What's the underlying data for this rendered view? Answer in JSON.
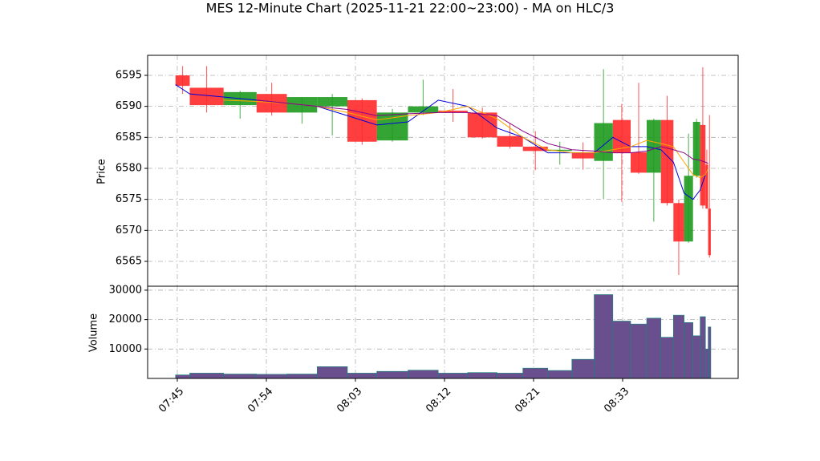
{
  "chart_data": [
    {
      "type": "candlestick",
      "title": "MES 12-Minute Chart (2025-11-21 22:00~23:00) - MA on HLC/3",
      "ylabel": "Price",
      "x": [
        -0.2,
        1.4,
        5.2,
        8.9,
        12.3,
        15.7,
        19.1,
        22.4,
        25.9,
        29.3,
        32.6,
        35.9,
        38.8,
        41.6,
        44.3,
        46.8,
        48.9,
        50.9,
        52.7,
        54.3,
        55.7,
        56.9,
        57.9,
        58.7,
        59.3,
        59.6
      ],
      "open": [
        6595,
        6593,
        6590.2,
        6592,
        6589,
        6590,
        6591,
        6584.5,
        6589,
        6589.3,
        6589,
        6585.2,
        6583.5,
        6582.8,
        6582.6,
        6581.2,
        6587.8,
        6582.6,
        6579.3,
        6587.8,
        6574.4,
        6568.2,
        6578.8,
        6587,
        6580.6,
        6573.5
      ],
      "high": [
        6596.5,
        6596.5,
        6592.5,
        6593.8,
        6591.5,
        6592,
        6591.3,
        6589.6,
        6594.3,
        6592.8,
        6589.8,
        6587.3,
        6586,
        6584.3,
        6584.2,
        6596,
        6590.4,
        6593.8,
        6588,
        6591.7,
        6575,
        6585.6,
        6588,
        6596.3,
        6583,
        6588.6
      ],
      "low": [
        6592,
        6589,
        6588,
        6588.5,
        6587.2,
        6585.3,
        6583.8,
        6584.3,
        6588.6,
        6587.5,
        6584.8,
        6583.2,
        6579.7,
        6580.6,
        6579.8,
        6575.1,
        6574.6,
        6579.1,
        6571.4,
        6574,
        6562.8,
        6568,
        6578.5,
        6573.5,
        6573.6,
        6565.6
      ],
      "close": [
        6593.3,
        6590.2,
        6592.3,
        6589,
        6591.5,
        6591.5,
        6584.3,
        6589,
        6590,
        6589,
        6585,
        6583.5,
        6582.8,
        6583,
        6581.6,
        6587.3,
        6582.5,
        6579.3,
        6587.8,
        6574.4,
        6568.2,
        6578.8,
        6587.5,
        6574,
        6573.5,
        6566
      ],
      "up_color": "#1e9a1e",
      "down_color": "#ff2a2a",
      "lines": [
        {
          "color": "#0000dd",
          "values": [
            6593.5,
            6592,
            6591.5,
            6591,
            6590.5,
            6590,
            6588.5,
            6587,
            6587.5,
            6591,
            6590,
            6586.5,
            6585,
            6582.5,
            6582.5,
            6582.5,
            6585,
            6583.5,
            6583.5,
            6583,
            6581,
            6576,
            6575,
            6576.5,
            6579,
            6580
          ]
        },
        {
          "color": "#ffa500",
          "values": [
            null,
            null,
            6591,
            6590.8,
            6590.5,
            6590,
            6589,
            6587.8,
            6588.5,
            6589,
            6590,
            6588,
            6585,
            6583,
            6582.5,
            6582.5,
            6583,
            6583.5,
            6584.5,
            6584,
            6583.5,
            6581,
            6579,
            6578.5,
            6579,
            6580
          ]
        },
        {
          "color": "#880088",
          "values": [
            null,
            null,
            null,
            6591,
            6590.5,
            6590,
            6589.5,
            6588.5,
            6588.8,
            6589,
            6589,
            6588.5,
            6586,
            6584,
            6583,
            6582.8,
            6582.5,
            6582.5,
            6582.8,
            6583.5,
            6583,
            6582.5,
            6581.5,
            6581.3,
            6581,
            6580.8
          ]
        }
      ],
      "xlim": [
        -3.33,
        62.97
      ],
      "ylim": [
        6560.99,
        6598.23
      ],
      "yticks": [
        6565,
        6570,
        6575,
        6580,
        6585,
        6590,
        6595
      ],
      "grid": true
    },
    {
      "type": "bar",
      "ylabel": "Volume",
      "x": [
        -0.2,
        1.4,
        5.2,
        8.9,
        12.3,
        15.7,
        19.1,
        22.4,
        25.9,
        29.3,
        32.6,
        35.9,
        38.8,
        41.6,
        44.3,
        46.8,
        48.9,
        50.9,
        52.7,
        54.3,
        55.7,
        56.9,
        57.9,
        58.7,
        59.3,
        59.6
      ],
      "values": [
        1200,
        1800,
        1500,
        1400,
        1500,
        4000,
        1800,
        2400,
        2800,
        1800,
        2000,
        1800,
        3500,
        2700,
        6500,
        28500,
        19500,
        18500,
        20500,
        14000,
        21500,
        19000,
        14500,
        21000,
        10000,
        17500
      ],
      "color": "#6a4f8f",
      "edge_color": "#0f8a7a",
      "xlim": [
        -3.33,
        62.97
      ],
      "ylim": [
        0,
        31350
      ],
      "yticks": [
        10000,
        20000,
        30000
      ],
      "xticks": [
        {
          "value": 0,
          "label": "07:45"
        },
        {
          "value": 10,
          "label": "07:54"
        },
        {
          "value": 20,
          "label": "08:03"
        },
        {
          "value": 30,
          "label": "08:12"
        },
        {
          "value": 40,
          "label": "08:21"
        },
        {
          "value": 50,
          "label": "08:33"
        }
      ],
      "grid": true
    }
  ]
}
